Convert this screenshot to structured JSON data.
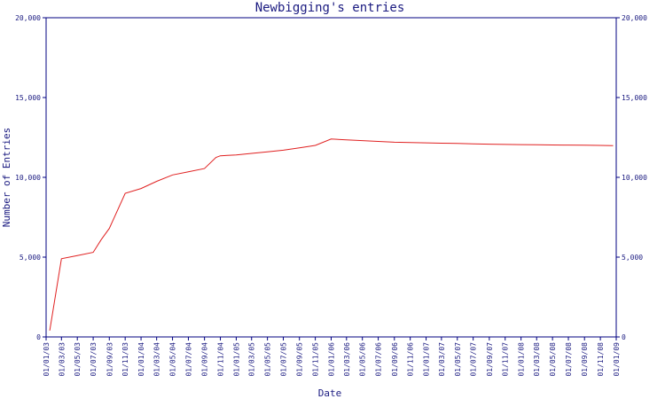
{
  "chart_data": {
    "type": "line",
    "title": "Newbigging's entries",
    "xlabel": "Date",
    "ylabel": "Number of Entries",
    "ylim": [
      0,
      20000
    ],
    "y_ticks": [
      0,
      5000,
      10000,
      15000,
      20000
    ],
    "y_tick_labels": [
      "0",
      "5,000",
      "10,000",
      "15,000",
      "20,000"
    ],
    "x_ticks": [
      "01/01/03",
      "01/03/03",
      "01/05/03",
      "01/07/03",
      "01/09/03",
      "01/11/03",
      "01/01/04",
      "01/03/04",
      "01/05/04",
      "01/07/04",
      "01/09/04",
      "01/11/04",
      "01/01/05",
      "01/03/05",
      "01/05/05",
      "01/07/05",
      "01/09/05",
      "01/11/05",
      "01/01/06",
      "01/03/06",
      "01/05/06",
      "01/07/06",
      "01/09/06",
      "01/11/06",
      "01/01/07",
      "01/03/07",
      "01/05/07",
      "01/07/07",
      "01/09/07",
      "01/11/07",
      "01/01/08",
      "01/03/08",
      "01/05/08",
      "01/07/08",
      "01/09/08",
      "01/11/08",
      "01/01/09"
    ],
    "grid": false,
    "series": [
      {
        "color": "#e02020",
        "x": [
          "2003-01-15",
          "2003-03-01",
          "2003-05-01",
          "2003-07-01",
          "2003-08-01",
          "2003-09-01",
          "2003-11-01",
          "2004-01-01",
          "2004-03-01",
          "2004-05-01",
          "2004-07-01",
          "2004-09-01",
          "2004-10-15",
          "2004-11-01",
          "2005-01-01",
          "2005-03-01",
          "2005-05-01",
          "2005-07-01",
          "2005-09-01",
          "2005-11-01",
          "2006-01-01",
          "2006-03-01",
          "2006-05-01",
          "2006-07-01",
          "2006-09-01",
          "2006-11-01",
          "2007-01-01",
          "2007-03-01",
          "2007-05-01",
          "2007-07-01",
          "2007-09-01",
          "2007-11-01",
          "2008-01-01",
          "2008-03-01",
          "2008-05-01",
          "2008-07-01",
          "2008-09-01",
          "2008-11-01",
          "2008-12-20"
        ],
        "values": [
          400,
          4900,
          5100,
          5300,
          6100,
          6800,
          9000,
          9300,
          9750,
          10150,
          10350,
          10550,
          11250,
          11350,
          11400,
          11500,
          11600,
          11700,
          11850,
          12000,
          12400,
          12350,
          12300,
          12250,
          12200,
          12180,
          12160,
          12140,
          12120,
          12100,
          12080,
          12060,
          12050,
          12040,
          12030,
          12020,
          12010,
          12000,
          11990
        ]
      }
    ]
  }
}
